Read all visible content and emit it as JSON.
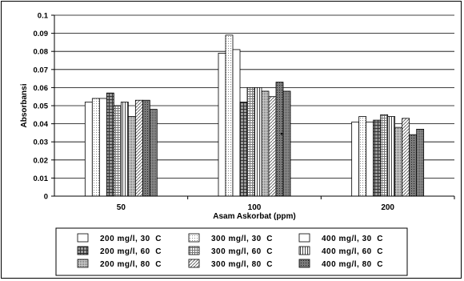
{
  "chart_data": {
    "type": "bar",
    "categories": [
      "50",
      "100",
      "200"
    ],
    "xlabel": "Asam Askorbat (ppm)",
    "ylabel": "Absorbansi",
    "ylim": [
      0,
      0.1
    ],
    "yticks": [
      "0",
      "0.01",
      "0.02",
      "0.03",
      "0.04",
      "0.05",
      "0.06",
      "0.07",
      "0.08",
      "0.09",
      "0.1"
    ],
    "grid": true,
    "legend_position": "bottom",
    "series": [
      {
        "name": "200 mg/l, 30  C",
        "pattern": "white",
        "values": [
          0.052,
          0.079,
          0.041
        ]
      },
      {
        "name": "300 mg/l, 30  C",
        "pattern": "light-dots",
        "values": [
          0.054,
          0.089,
          0.044
        ]
      },
      {
        "name": "400 mg/l, 30  C",
        "pattern": "white",
        "values": [
          0.054,
          0.081,
          0.041
        ]
      },
      {
        "name": "200 mg/l, 60  C",
        "pattern": "dark-grid",
        "values": [
          0.057,
          0.052,
          0.042
        ]
      },
      {
        "name": "300 mg/l, 60  C",
        "pattern": "fine-grid",
        "values": [
          0.05,
          0.06,
          0.045
        ]
      },
      {
        "name": "400 mg/l, 60  C",
        "pattern": "vertical",
        "values": [
          0.052,
          0.06,
          0.044
        ]
      },
      {
        "name": "200 mg/l, 80  C",
        "pattern": "dense-dots",
        "values": [
          0.044,
          0.058,
          0.038
        ]
      },
      {
        "name": "300 mg/l, 80  C",
        "pattern": "diagonal",
        "values": [
          0.053,
          0.055,
          0.043
        ]
      },
      {
        "name": "400 mg/l, 80  C",
        "pattern": "dark-dots",
        "values": [
          0.053,
          0.063,
          0.034
        ]
      },
      {
        "name": "",
        "pattern": "medium-dots",
        "values": [
          0.048,
          0.058,
          0.037
        ]
      }
    ]
  },
  "legend": {
    "items": [
      {
        "label": "200 mg/l, 30  C",
        "pattern": "white"
      },
      {
        "label": "300 mg/l, 30  C",
        "pattern": "light-dots"
      },
      {
        "label": "400 mg/l, 30  C",
        "pattern": "white"
      },
      {
        "label": "200 mg/l, 60  C",
        "pattern": "dark-grid"
      },
      {
        "label": "300 mg/l, 60  C",
        "pattern": "fine-grid"
      },
      {
        "label": "400 mg/l, 60  C",
        "pattern": "vertical"
      },
      {
        "label": "200 mg/l, 80  C",
        "pattern": "dense-dots"
      },
      {
        "label": "300 mg/l, 80  C",
        "pattern": "diagonal"
      },
      {
        "label": "400 mg/l, 80  C",
        "pattern": "dark-dots"
      }
    ]
  }
}
